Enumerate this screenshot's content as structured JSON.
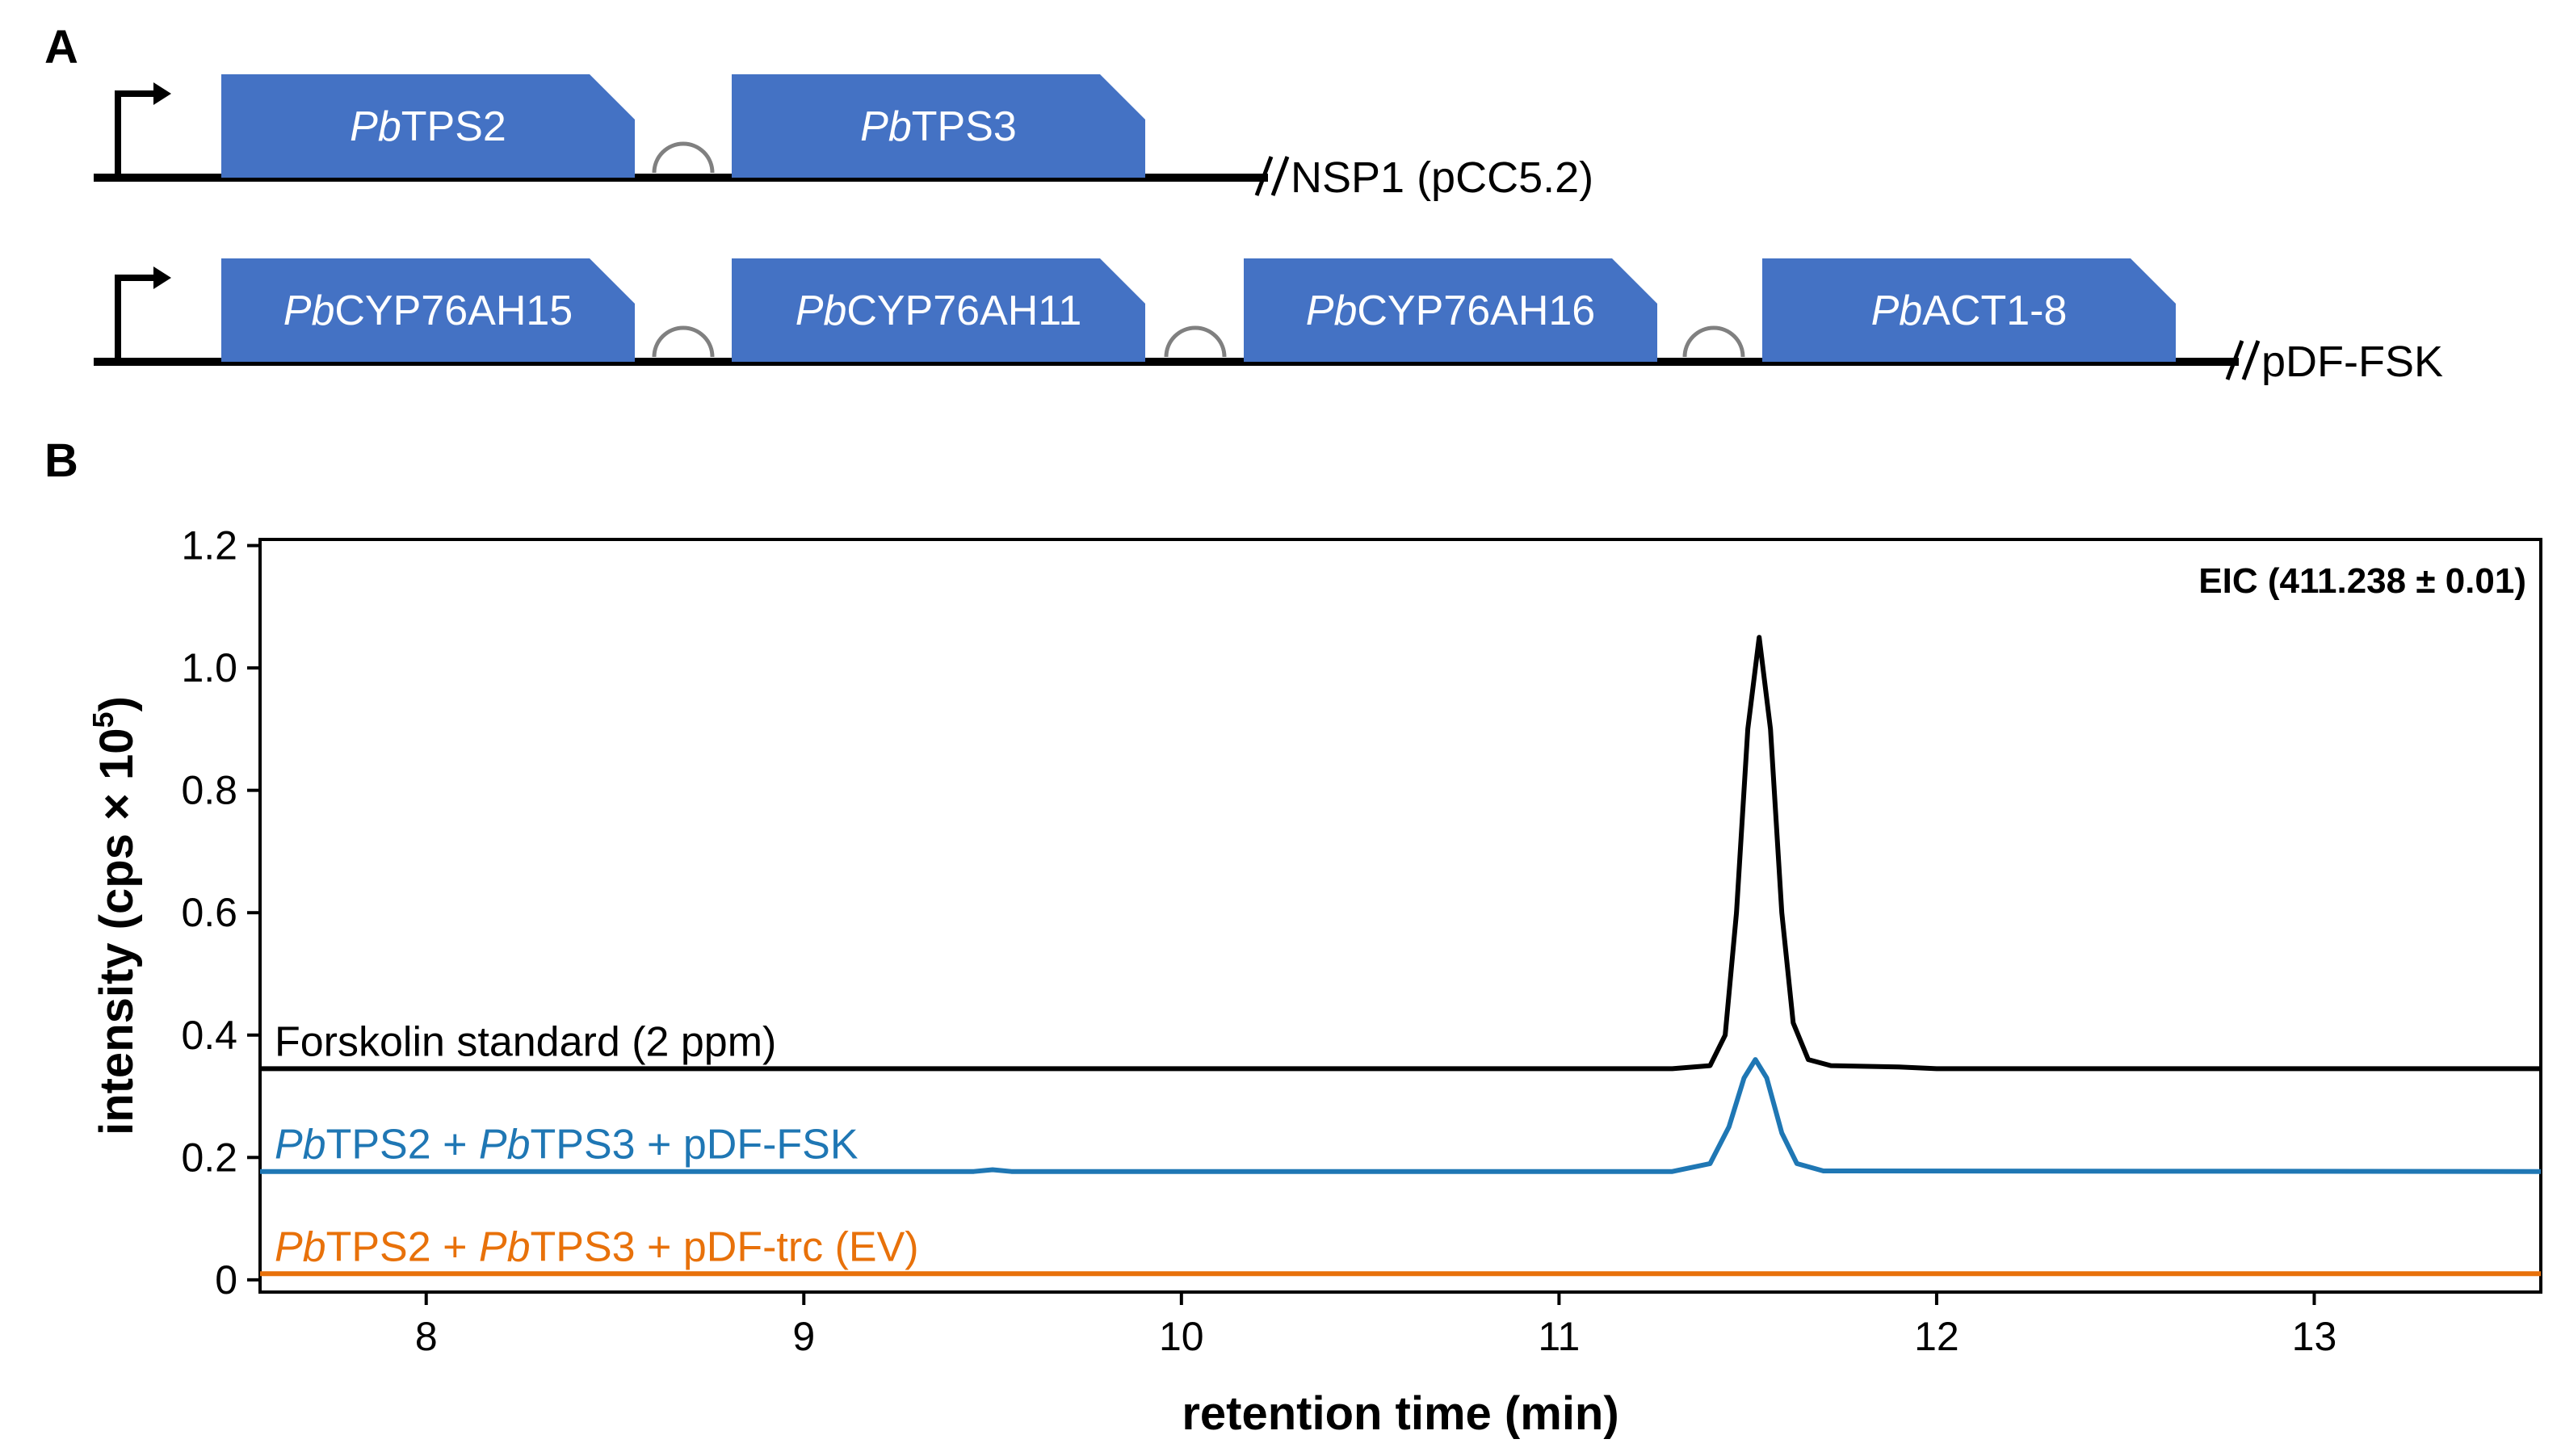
{
  "panel_a": {
    "letter": "A",
    "constructs": [
      {
        "name": "NSP1 (pCC5.2)",
        "genes": [
          {
            "prefix": "Pb",
            "name": "TPS2"
          },
          {
            "prefix": "Pb",
            "name": "TPS3"
          }
        ]
      },
      {
        "name": "pDF-FSK",
        "genes": [
          {
            "prefix": "Pb",
            "name": "CYP76AH15"
          },
          {
            "prefix": "Pb",
            "name": "CYP76AH11"
          },
          {
            "prefix": "Pb",
            "name": "CYP76AH16"
          },
          {
            "prefix": "Pb",
            "name": "ACT1-8"
          }
        ]
      }
    ],
    "colors": {
      "gene_block": "#4472C4",
      "backbone": "#000000",
      "rbs": "#808080"
    }
  },
  "panel_b": {
    "letter": "B",
    "eic_label": "EIC (411.238 ± 0.01)"
  },
  "chart_data": {
    "type": "line",
    "title": "",
    "xlabel": "retention time (min)",
    "ylabel_main": "intensity (cps × 10",
    "ylabel_sup": "5",
    "ylabel_close": ")",
    "xlim": [
      7.56,
      13.6
    ],
    "ylim": [
      -0.02,
      1.21
    ],
    "xticks": [
      8,
      9,
      10,
      11,
      12,
      13
    ],
    "yticks": [
      0,
      0.2,
      0.4,
      0.6,
      0.8,
      1.0,
      1.2
    ],
    "ytick_labels": [
      "0",
      "0.2",
      "0.4",
      "0.6",
      "0.8",
      "1.0",
      "1.2"
    ],
    "grid": false,
    "series": [
      {
        "name": "Forskolin standard (2 ppm)",
        "label_parts": [
          {
            "t": "Forskolin standard (2 ppm)",
            "i": false
          }
        ],
        "color": "#000000",
        "points": [
          [
            7.56,
            0.345
          ],
          [
            11.3,
            0.345
          ],
          [
            11.4,
            0.35
          ],
          [
            11.44,
            0.4
          ],
          [
            11.47,
            0.6
          ],
          [
            11.5,
            0.9
          ],
          [
            11.53,
            1.05
          ],
          [
            11.56,
            0.9
          ],
          [
            11.59,
            0.6
          ],
          [
            11.62,
            0.42
          ],
          [
            11.66,
            0.36
          ],
          [
            11.72,
            0.35
          ],
          [
            11.9,
            0.348
          ],
          [
            12.0,
            0.345
          ],
          [
            13.6,
            0.345
          ]
        ]
      },
      {
        "name": "PbTPS2 + PbTPS3 + pDF-FSK",
        "label_parts": [
          {
            "t": "Pb",
            "i": true
          },
          {
            "t": "TPS2 + ",
            "i": false
          },
          {
            "t": "Pb",
            "i": true
          },
          {
            "t": "TPS3 + pDF-FSK",
            "i": false
          }
        ],
        "color": "#1F77B4",
        "points": [
          [
            7.56,
            0.177
          ],
          [
            9.45,
            0.177
          ],
          [
            9.5,
            0.18
          ],
          [
            9.55,
            0.177
          ],
          [
            11.3,
            0.177
          ],
          [
            11.4,
            0.19
          ],
          [
            11.45,
            0.25
          ],
          [
            11.49,
            0.33
          ],
          [
            11.52,
            0.36
          ],
          [
            11.55,
            0.33
          ],
          [
            11.59,
            0.24
          ],
          [
            11.63,
            0.19
          ],
          [
            11.7,
            0.178
          ],
          [
            13.6,
            0.177
          ]
        ]
      },
      {
        "name": "PbTPS2 + PbTPS3 + pDF-trc (EV)",
        "label_parts": [
          {
            "t": "Pb",
            "i": true
          },
          {
            "t": "TPS2 + ",
            "i": false
          },
          {
            "t": "Pb",
            "i": true
          },
          {
            "t": "TPS3 + pDF-trc (EV)",
            "i": false
          }
        ],
        "color": "#E8710A",
        "points": [
          [
            7.56,
            0.01
          ],
          [
            13.6,
            0.01
          ]
        ]
      }
    ]
  }
}
